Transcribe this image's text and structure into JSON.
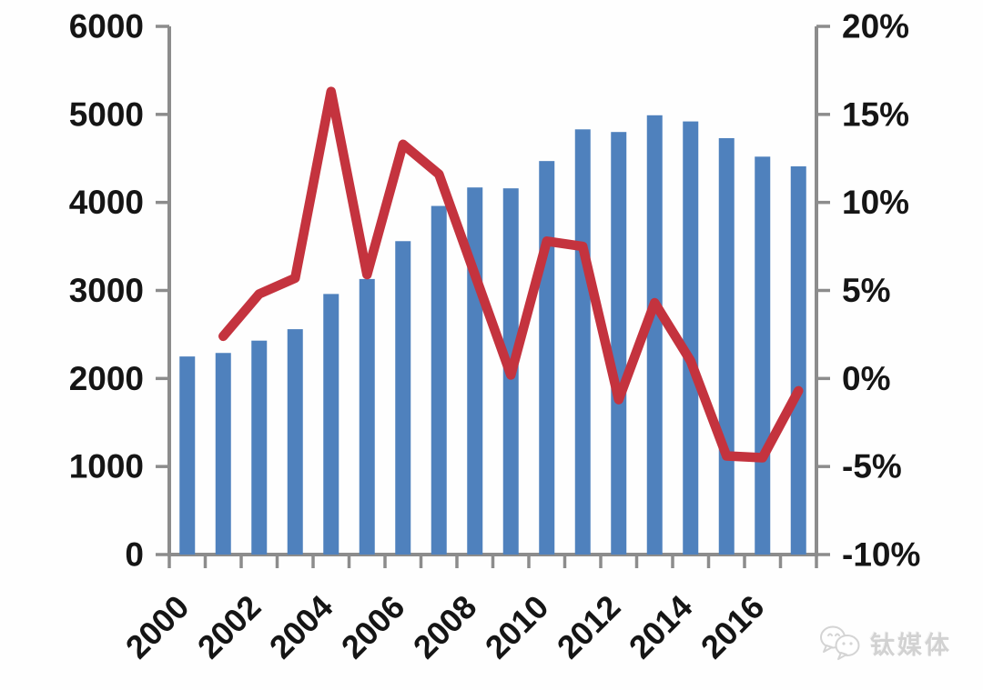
{
  "watermark": {
    "text": "钛媒体"
  },
  "colors": {
    "bar": "#4F81BD",
    "line": "#C4333E",
    "axis": "#8C8C8C",
    "label_text": "#151515",
    "watermark": "#D2D2D2",
    "background": "#FEFEFE"
  },
  "chart_data": {
    "type": "combo",
    "title": "",
    "legend": "none",
    "grid": false,
    "categories": [
      "2000",
      "2001",
      "2002",
      "2003",
      "2004",
      "2005",
      "2006",
      "2007",
      "2008",
      "2009",
      "2010",
      "2011",
      "2012",
      "2013",
      "2014",
      "2015",
      "2016",
      "2017"
    ],
    "series": [
      {
        "type": "bar",
        "axis": "left",
        "values": [
          2250,
          2290,
          2430,
          2560,
          2960,
          3130,
          3560,
          3960,
          4170,
          4160,
          4470,
          4830,
          4800,
          4990,
          4920,
          4730,
          4520,
          4410
        ]
      },
      {
        "type": "line",
        "axis": "right",
        "unit": "%",
        "values": [
          null,
          2.4,
          4.8,
          5.7,
          16.3,
          5.9,
          13.3,
          11.6,
          5.9,
          0.2,
          7.8,
          7.5,
          -1.2,
          4.3,
          1.0,
          -4.4,
          -4.5,
          -0.7
        ]
      }
    ],
    "left_axis": {
      "min": 0,
      "max": 6000,
      "step": 1000,
      "tick_labels": [
        "0",
        "1000",
        "2000",
        "3000",
        "4000",
        "5000",
        "6000"
      ]
    },
    "right_axis": {
      "min": -10,
      "max": 20,
      "step": 5,
      "tick_labels": [
        "-10%",
        "-5%",
        "0%",
        "5%",
        "10%",
        "15%",
        "20%"
      ]
    },
    "x_axis": {
      "visible_labels": [
        "2000",
        "2002",
        "2004",
        "2006",
        "2008",
        "2010",
        "2012",
        "2014",
        "2016"
      ],
      "label_every": 2,
      "label_rotation": -45
    }
  }
}
